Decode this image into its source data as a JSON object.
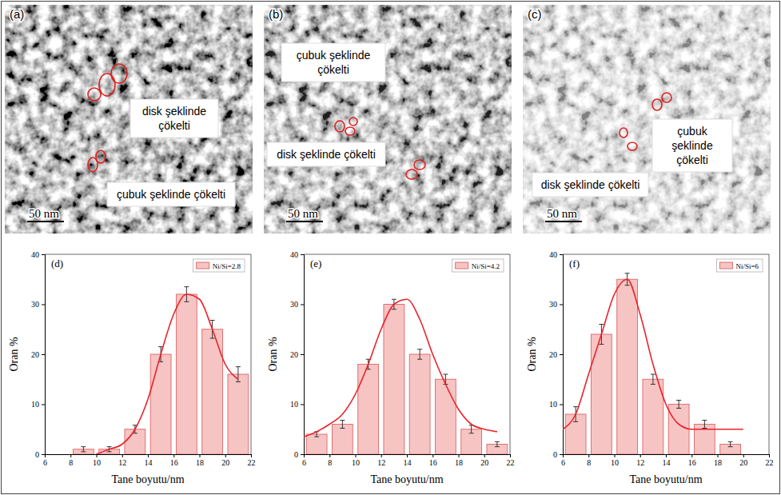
{
  "images": [
    {
      "letter": "(a)",
      "labels": [
        "disk şeklinde çökelti",
        "çubuk şeklinde çökelti"
      ],
      "scale_bar": "50 nm"
    },
    {
      "letter": "(b)",
      "labels": [
        "çubuk şeklinde çökelti",
        "disk şeklinde çökelti"
      ],
      "scale_bar": "50 nm"
    },
    {
      "letter": "(c)",
      "labels": [
        "çubuk şeklinde çökelti",
        "disk şeklinde çökelti"
      ],
      "scale_bar": "50 nm"
    }
  ],
  "chart_data": [
    {
      "type": "histogram",
      "title": "(d)",
      "xlabel": "Tane boyutu/nm",
      "ylabel": "Oran %",
      "xlim": [
        6,
        22
      ],
      "xticks": [
        6,
        8,
        10,
        12,
        14,
        16,
        18,
        20,
        22
      ],
      "ylim": [
        0,
        40
      ],
      "yticks": [
        0,
        10,
        20,
        30,
        40
      ],
      "legend": "top-right",
      "series": [
        {
          "name": "Ni/Si=2.8",
          "type": "histogram",
          "color": "#f7c4c4",
          "bins": [
            8,
            10,
            12,
            14,
            16,
            18,
            20,
            22
          ],
          "values": [
            1,
            1,
            5,
            20,
            32,
            25,
            16
          ],
          "errors": [
            0.5,
            0.5,
            0.8,
            1.5,
            1.5,
            1.8,
            1.5
          ]
        },
        {
          "type": "line",
          "color": "#e8232a",
          "x": [
            10,
            11,
            12,
            13,
            14,
            15,
            16,
            17,
            18,
            19,
            20,
            21
          ],
          "values": [
            0,
            1,
            2,
            5,
            11,
            20,
            28,
            32,
            31,
            25,
            18,
            15
          ]
        }
      ]
    },
    {
      "type": "histogram",
      "title": "(e)",
      "xlabel": "Tane boyutu/nm",
      "ylabel": "Oran %",
      "xlim": [
        6,
        22
      ],
      "xticks": [
        6,
        8,
        10,
        12,
        14,
        16,
        18,
        20,
        22
      ],
      "ylim": [
        0,
        40
      ],
      "yticks": [
        0,
        10,
        20,
        30,
        40
      ],
      "legend": "top-right",
      "series": [
        {
          "name": "Ni/Si=4.2",
          "type": "histogram",
          "color": "#f7c4c4",
          "bins": [
            6,
            8,
            10,
            12,
            14,
            16,
            18,
            20,
            22
          ],
          "values": [
            4,
            6,
            18,
            30,
            20,
            15,
            5,
            2
          ],
          "errors": [
            0.5,
            0.8,
            1,
            1,
            1,
            1,
            0.8,
            0.5
          ]
        },
        {
          "type": "line",
          "color": "#e8232a",
          "x": [
            6,
            7,
            8,
            9,
            10,
            11,
            12,
            13,
            14,
            15,
            16,
            17,
            18,
            19,
            20,
            21
          ],
          "values": [
            3.5,
            4.5,
            6,
            8,
            12,
            18,
            25,
            30,
            31,
            27,
            20,
            14,
            9,
            6,
            5,
            4.5
          ]
        }
      ]
    },
    {
      "type": "histogram",
      "title": "(f)",
      "xlabel": "Tane boyutu/nm",
      "ylabel": "Oran %",
      "xlim": [
        6,
        22
      ],
      "xticks": [
        6,
        8,
        10,
        12,
        14,
        16,
        18,
        20,
        22
      ],
      "ylim": [
        0,
        40
      ],
      "yticks": [
        0,
        10,
        20,
        30,
        40
      ],
      "legend": "top-right",
      "series": [
        {
          "name": "Ni/Si=6",
          "type": "histogram",
          "color": "#f7c4c4",
          "bins": [
            6,
            8,
            10,
            12,
            14,
            16,
            18,
            20
          ],
          "values": [
            8,
            24,
            35,
            15,
            10,
            6,
            2
          ],
          "errors": [
            1.5,
            2,
            1.2,
            1,
            0.8,
            0.8,
            0.5
          ]
        },
        {
          "type": "line",
          "color": "#e8232a",
          "x": [
            6,
            7,
            8,
            9,
            10,
            11,
            12,
            13,
            14,
            15,
            16,
            17,
            18,
            19,
            20
          ],
          "values": [
            5,
            8,
            16,
            24,
            32,
            35,
            28,
            18,
            10,
            6,
            5,
            5,
            5,
            5,
            5
          ]
        }
      ]
    }
  ]
}
